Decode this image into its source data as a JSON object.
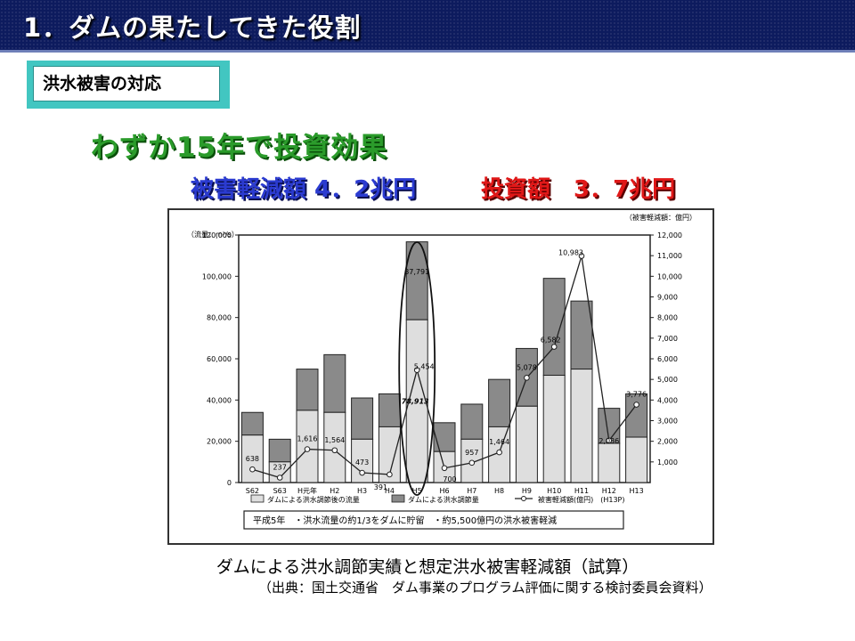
{
  "header": {
    "title": "1．ダムの果たしてきた役割"
  },
  "section_tag": "洪水被害の対応",
  "headline": "わずか15年で投資効果",
  "summary": {
    "damage_reduction": "被害軽減額 4．2兆円",
    "investment": "投資額　3．7兆円"
  },
  "caption": "ダムによる洪水調節実績と想定洪水被害軽減額（試算）",
  "source": "（出典：国土交通省　ダム事業のプログラム評価に関する検討委員会資料）",
  "colors": {
    "title_bg": "#0d1b5e",
    "section_tag_border": "#42c6c1",
    "headline_green": "#2b9b2b",
    "blue_text": "#2b3bd0",
    "red_text": "#e01818",
    "bar_light": "#dedede",
    "bar_dark": "#8a8a8a"
  },
  "chart_data": {
    "type": "bar",
    "left_axis_label": "（流量：m³/s）",
    "right_axis_label": "（被害軽減額：億円）",
    "categories": [
      "S62",
      "S63",
      "H元年",
      "H2",
      "H3",
      "H4",
      "H5",
      "H6",
      "H7",
      "H8",
      "H9",
      "H10",
      "H11",
      "H12",
      "H13"
    ],
    "ylim": [
      0,
      120000
    ],
    "yticks": [
      "0",
      "20,000",
      "40,000",
      "60,000",
      "80,000",
      "100,000",
      "120,000"
    ],
    "y2lim": [
      0,
      12000
    ],
    "y2ticks": [
      "1,000",
      "2,000",
      "3,000",
      "4,000",
      "5,000",
      "6,000",
      "7,000",
      "8,000",
      "9,000",
      "10,000",
      "11,000",
      "12,000"
    ],
    "series": [
      {
        "name": "ダムによる洪水調節後の流量",
        "kind": "bar",
        "values": [
          23000,
          10000,
          35000,
          34000,
          21000,
          27000,
          78913,
          15000,
          21000,
          27000,
          37000,
          52000,
          55000,
          19000,
          22000
        ]
      },
      {
        "name": "ダムによる洪水調節量",
        "kind": "bar",
        "values": [
          11000,
          11000,
          20000,
          28000,
          20000,
          16000,
          37791,
          14000,
          17000,
          23000,
          28000,
          47000,
          33000,
          17000,
          21000
        ]
      },
      {
        "name": "被害軽減額(億円)　(H13P)",
        "kind": "line",
        "values": [
          638,
          237,
          1616,
          1564,
          473,
          391,
          5454,
          700,
          957,
          1464,
          5078,
          6582,
          10983,
          2036,
          3776
        ]
      }
    ],
    "point_labels": [
      "638",
      "237",
      "1,616",
      "1,564",
      "473",
      "391",
      "5,454",
      "700",
      "957",
      "1,464",
      "5,078",
      "6,582",
      "10,983",
      "2,036",
      "3,776"
    ],
    "bar_labels": {
      "light": "78,913",
      "dark": "37,791"
    },
    "note_text": "平成5年　・洪水流量の約1/3をダムに貯留　・約5,500億円の洪水被害軽減",
    "legend_position": "bottom",
    "grid": false
  }
}
